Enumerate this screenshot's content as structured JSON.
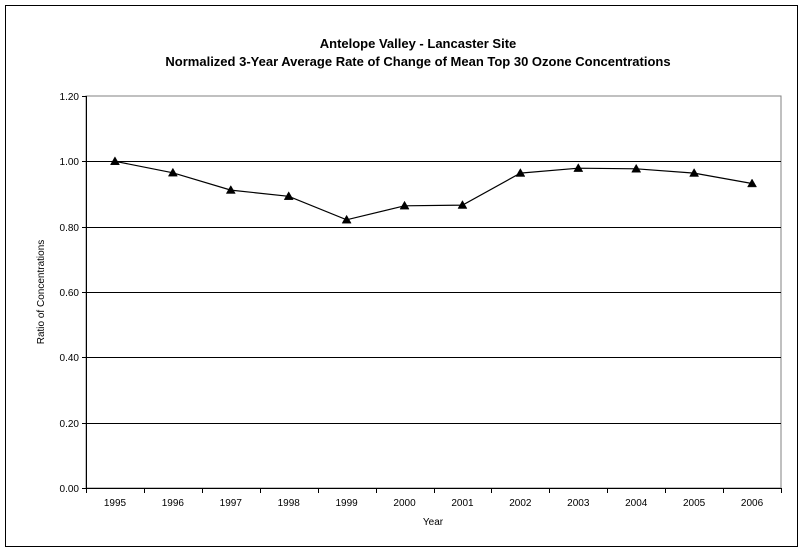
{
  "chart_data": {
    "type": "line",
    "title": "Antelope Valley - Lancaster Site",
    "subtitle": "Normalized 3-Year Average Rate of Change of Mean Top 30 Ozone Concentrations",
    "xlabel": "Year",
    "ylabel": "Ratio of Concentrations",
    "categories": [
      "1995",
      "1996",
      "1997",
      "1998",
      "1999",
      "2000",
      "2001",
      "2002",
      "2003",
      "2004",
      "2005",
      "2006"
    ],
    "series": [
      {
        "values": [
          1.0,
          0.965,
          0.912,
          0.893,
          0.821,
          0.864,
          0.866,
          0.964,
          0.979,
          0.977,
          0.964,
          0.932
        ]
      }
    ],
    "ylim": [
      0,
      1.2
    ],
    "yticks": [
      "0.00",
      "0.20",
      "0.40",
      "0.60",
      "0.80",
      "1.00",
      "1.20"
    ],
    "grid": true,
    "marker": "triangle",
    "colors": {
      "line": "#000000",
      "grid": "#000000",
      "plot_border": "#808080",
      "frame": "#000000"
    }
  }
}
